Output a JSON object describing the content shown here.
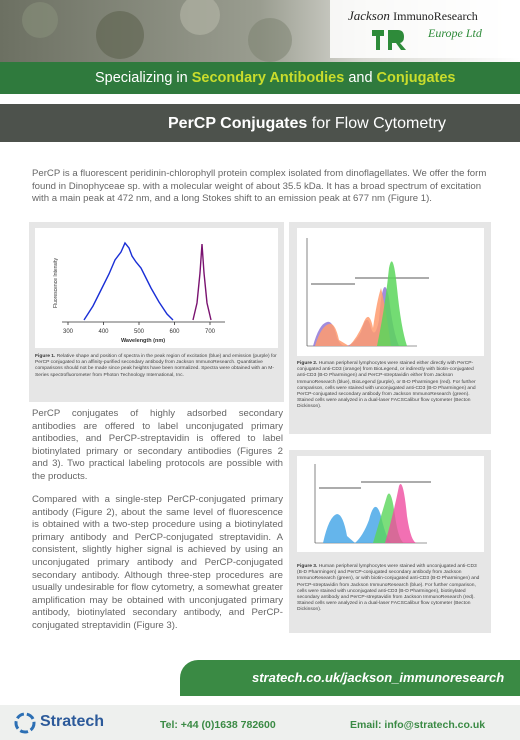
{
  "header": {
    "logo": {
      "mark": "IR",
      "line1a": "Jackson",
      "line1b": "ImmunoResearch",
      "line2": "Europe Ltd"
    },
    "tagline": {
      "prefix": "Specializing in ",
      "highlight1": "Secondary Antibodies",
      "middle": " and ",
      "highlight2": "Conjugates"
    },
    "title": {
      "bold": "PerCP Conjugates",
      "rest": " for Flow Cytometry"
    }
  },
  "intro": "PerCP is a fluorescent peridinin-chlorophyll protein complex isolated from dinoflagellates. We offer the form found in Dinophyceae sp. with a molecular weight of about 35.5 kDa. It has a broad spectrum of excitation with a main peak at 472 nm, and a long Stokes shift to an emission peak at 677 nm (Figure 1).",
  "figure1": {
    "y_label": "Fluorescence Intensity",
    "x_label": "Wavelength (nm)",
    "xticks": [
      300,
      400,
      500,
      600,
      700
    ],
    "caption_label": "Figure 1.",
    "caption": " Relative shape and position of spectra in the peak region of excitation (blue) and emission (purple) for PerCP conjugated to an affinity-purified secondary antibody from Jackson ImmunoResearch. Quantitative comparisons should not be made since peak heights have been normalized. Spectra were obtained with an M-Series spectrofluorometer from Photon Technology International, Inc."
  },
  "figure2": {
    "caption_label": "Figure 2.",
    "caption": " Human peripheral lymphocytes were stained either directly with PerCP-conjugated anti-CD3 (orange) from BioLegend, or indirectly with biotin-conjugated anti-CD3 (B-D Pharmingen) and PerCP-streptavidin either from Jackson ImmunoResearch (blue), BioLegend (purple), or B-D Pharmingen (red). For further comparison, cells were stained with unconjugated anti-CD3 (B-D Pharmingen) and PerCP-conjugated secondary antibody from Jackson ImmunoResearch (green). Stained cells were analyzed in a dual-laser FACSCalibur flow cytometer (Becton Dickinson)."
  },
  "figure3": {
    "caption_label": "Figure 3.",
    "caption": " Human peripheral lymphocytes were stained with unconjugated anti-CD3 (B-D Pharmingen) and PerCP-conjugated secondary antibody from Jackson ImmunoResearch (green), or with biotin-conjugated anti-CD3 (B-D Pharmingen) and PerCP-streptavidin from Jackson ImmunoResearch (blue). For further comparison, cells were stained with unconjugated anti-CD3 (B-D Pharmingen), biotinylated secondary antibody and PerCP-streptavidin from Jackson ImmunoResearch (red). Stained cells were analyzed in a dual-laser FACSCalibur flow cytometer (Becton Dickinson)."
  },
  "body": [
    "PerCP conjugates of highly adsorbed secondary antibodies are offered to label unconjugated primary antibodies, and PerCP-streptavidin is offered to label biotinylated primary or secondary antibodies (Figures 2 and 3). Two practical labeling protocols are possible with the products.",
    "Compared with a single-step PerCP-conjugated primary antibody (Figure 2), about the same level of fluorescence is obtained with a two-step procedure using a biotinylated primary antibody and PerCP-conjugated streptavidin. A consistent, slightly higher signal is achieved by using an unconjugated primary antibody and PerCP-conjugated secondary antibody. Although three-step procedures are usually undesirable for flow cytometry, a somewhat greater amplification may be obtained with unconjugated primary antibody, biotinylated secondary antibody, and PerCP-conjugated streptavidin (Figure 3)."
  ],
  "footer": {
    "url": "stratech.co.uk/jackson_immunoresearch",
    "brand": "Stratech",
    "tel": "Tel: +44 (0)1638 782600",
    "email": "Email: info@stratech.co.uk"
  }
}
